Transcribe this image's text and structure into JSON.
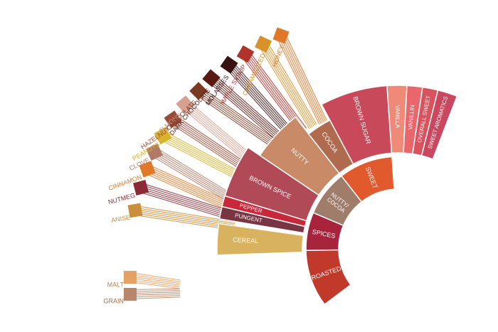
{
  "diagram": {
    "root": [
      {
        "label": "ROASTED",
        "color": "#c0392b"
      },
      {
        "label": "SPICES",
        "color": "#a8243c"
      },
      {
        "label": "NUTTY/ COCOA",
        "color": "#a07c6a"
      },
      {
        "label": "SWEET",
        "color": "#e05a2e"
      }
    ],
    "middle": [
      {
        "label": "CEREAL",
        "color": "#d9b25f",
        "parent": "ROASTED"
      },
      {
        "label": "PUNGENT",
        "color": "#7a3545",
        "parent": "SPICES"
      },
      {
        "label": "PEPPER",
        "color": "#c8283a",
        "parent": "SPICES"
      },
      {
        "label": "BROWN SPICE",
        "color": "#b04a57",
        "parent": "SPICES"
      },
      {
        "label": "NUTTY",
        "color": "#c98a68",
        "parent": "NUTTY/ COCOA"
      },
      {
        "label": "COCOA",
        "color": "#b06a4d",
        "parent": "NUTTY/ COCOA"
      },
      {
        "label": "BROWN SUGAR",
        "color": "#c8495a",
        "parent": "SWEET"
      },
      {
        "label": "VANILLA",
        "color": "#f08a78",
        "parent": "SWEET"
      },
      {
        "label": "VANILLIN",
        "color": "#e8666c",
        "parent": "SWEET"
      },
      {
        "label": "OVERALL SWEET",
        "color": "#d9535e",
        "parent": "SWEET"
      },
      {
        "label": "SWEET AROMATICS",
        "color": "#c94860",
        "parent": "SWEET"
      }
    ],
    "leaves": [
      {
        "label": "GRAIN",
        "color": "#b8866a",
        "text_color": "#9e6e52",
        "parent": "CEREAL"
      },
      {
        "label": "MALT",
        "color": "#e8a062",
        "text_color": "#c88048",
        "parent": "CEREAL"
      },
      {
        "label": "ANISE",
        "color": "#c98f3a",
        "text_color": "#c98f3a",
        "parent": "BROWN SPICE"
      },
      {
        "label": "NUTMEG",
        "color": "#8a2a36",
        "text_color": "#8a2a36",
        "parent": "BROWN SPICE"
      },
      {
        "label": "CINNAMON",
        "color": "#e07a2a",
        "text_color": "#e07a2a",
        "parent": "BROWN SPICE"
      },
      {
        "label": "CLOVE",
        "color": "#b07a66",
        "text_color": "#b07a66",
        "parent": "BROWN SPICE"
      },
      {
        "label": "PEANUTS",
        "color": "#d8b22a",
        "text_color": "#d8b22a",
        "parent": "NUTTY"
      },
      {
        "label": "HAZELNUT",
        "color": "#9a4a36",
        "text_color": "#9a4a36",
        "parent": "NUTTY"
      },
      {
        "label": "ALMOND",
        "color": "#d8a090",
        "text_color": "#c89080",
        "parent": "NUTTY"
      },
      {
        "label": "CHOCOLATE",
        "color": "#7a3a22",
        "text_color": "#7a3a22",
        "parent": "COCOA"
      },
      {
        "label": "DARK CHOCOLATE",
        "color": "#5a1a14",
        "text_color": "#5a1a14",
        "parent": "COCOA"
      },
      {
        "label": "MOLASSES",
        "color": "#3a1214",
        "text_color": "#3a1214",
        "parent": "BROWN SUGAR"
      },
      {
        "label": "MAPLE SYRUP",
        "color": "#b0342a",
        "text_color": "#b0342a",
        "parent": "BROWN SUGAR"
      },
      {
        "label": "CARAMELIZED",
        "color": "#d8922a",
        "text_color": "#d8922a",
        "parent": "BROWN SUGAR"
      },
      {
        "label": "HONEY",
        "color": "#e0782a",
        "text_color": "#e0782a",
        "parent": "BROWN SUGAR"
      }
    ]
  }
}
